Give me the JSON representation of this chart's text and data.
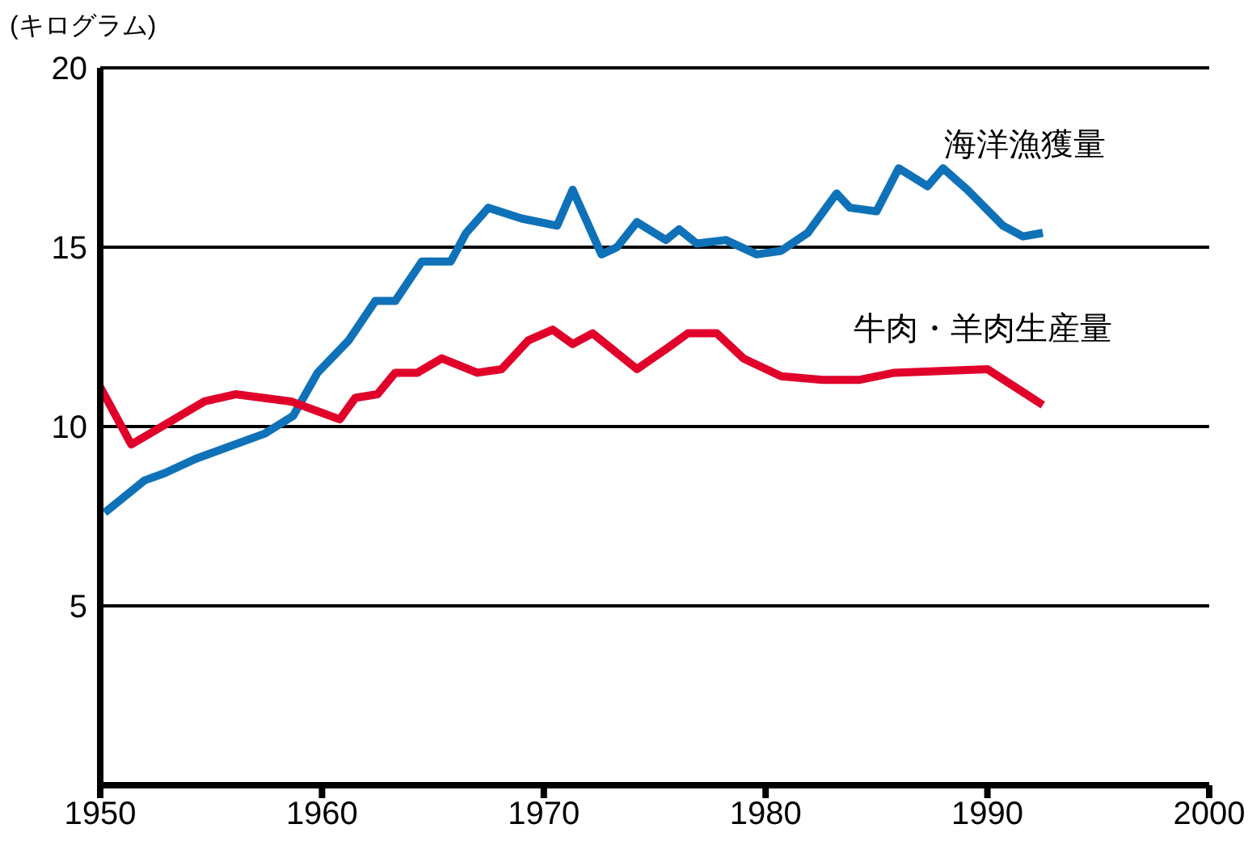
{
  "chart_data": {
    "type": "line",
    "ylabel": "(キログラム)",
    "xlim": [
      1950,
      2000
    ],
    "xticks": [
      1950,
      1960,
      1970,
      1980,
      1990,
      2000
    ],
    "ylim": [
      0,
      20
    ],
    "yticks": [
      5,
      10,
      15,
      20
    ],
    "grid": "y",
    "marker": "none",
    "line_style": "solid",
    "series": [
      {
        "name": "海洋漁獲量",
        "color": "#0f72b8",
        "x": [
          1950.2,
          1952,
          1952.9,
          1954.3,
          1957.4,
          1958.7,
          1959.8,
          1961.2,
          1962.4,
          1963.3,
          1964.5,
          1965.8,
          1966.5,
          1967.5,
          1969,
          1970.6,
          1971.3,
          1972.6,
          1973.3,
          1974.2,
          1975.5,
          1976.1,
          1976.9,
          1978.2,
          1979.6,
          1980.7,
          1981.9,
          1983.2,
          1983.8,
          1985,
          1986,
          1987.3,
          1988,
          1989.1,
          1990.7,
          1991.6,
          1992.5
        ],
        "values": [
          7.6,
          8.5,
          8.7,
          9.1,
          9.8,
          10.3,
          11.5,
          12.4,
          13.5,
          13.5,
          14.6,
          14.6,
          15.4,
          16.1,
          15.8,
          15.6,
          16.6,
          14.8,
          15.0,
          15.7,
          15.2,
          15.5,
          15.1,
          15.2,
          14.8,
          14.9,
          15.4,
          16.5,
          16.1,
          16.0,
          17.2,
          16.7,
          17.2,
          16.6,
          15.6,
          15.3,
          15.4
        ]
      },
      {
        "name": "牛肉・羊肉生産量",
        "color": "#e0002a",
        "x": [
          1950,
          1951.4,
          1954.7,
          1956.1,
          1958.6,
          1960.8,
          1961.5,
          1962.5,
          1963.3,
          1964.3,
          1965.4,
          1967,
          1968.1,
          1969.3,
          1970.4,
          1971.3,
          1972.2,
          1974.2,
          1975.6,
          1976.5,
          1977.8,
          1979,
          1980.7,
          1982.6,
          1984.2,
          1985.8,
          1990,
          1992.5
        ],
        "values": [
          11.1,
          9.5,
          10.7,
          10.9,
          10.7,
          10.2,
          10.8,
          10.9,
          11.5,
          11.5,
          11.9,
          11.5,
          11.6,
          12.4,
          12.7,
          12.3,
          12.6,
          11.6,
          12.2,
          12.6,
          12.6,
          11.9,
          11.4,
          11.3,
          11.3,
          11.5,
          11.6,
          10.6
        ]
      }
    ]
  }
}
